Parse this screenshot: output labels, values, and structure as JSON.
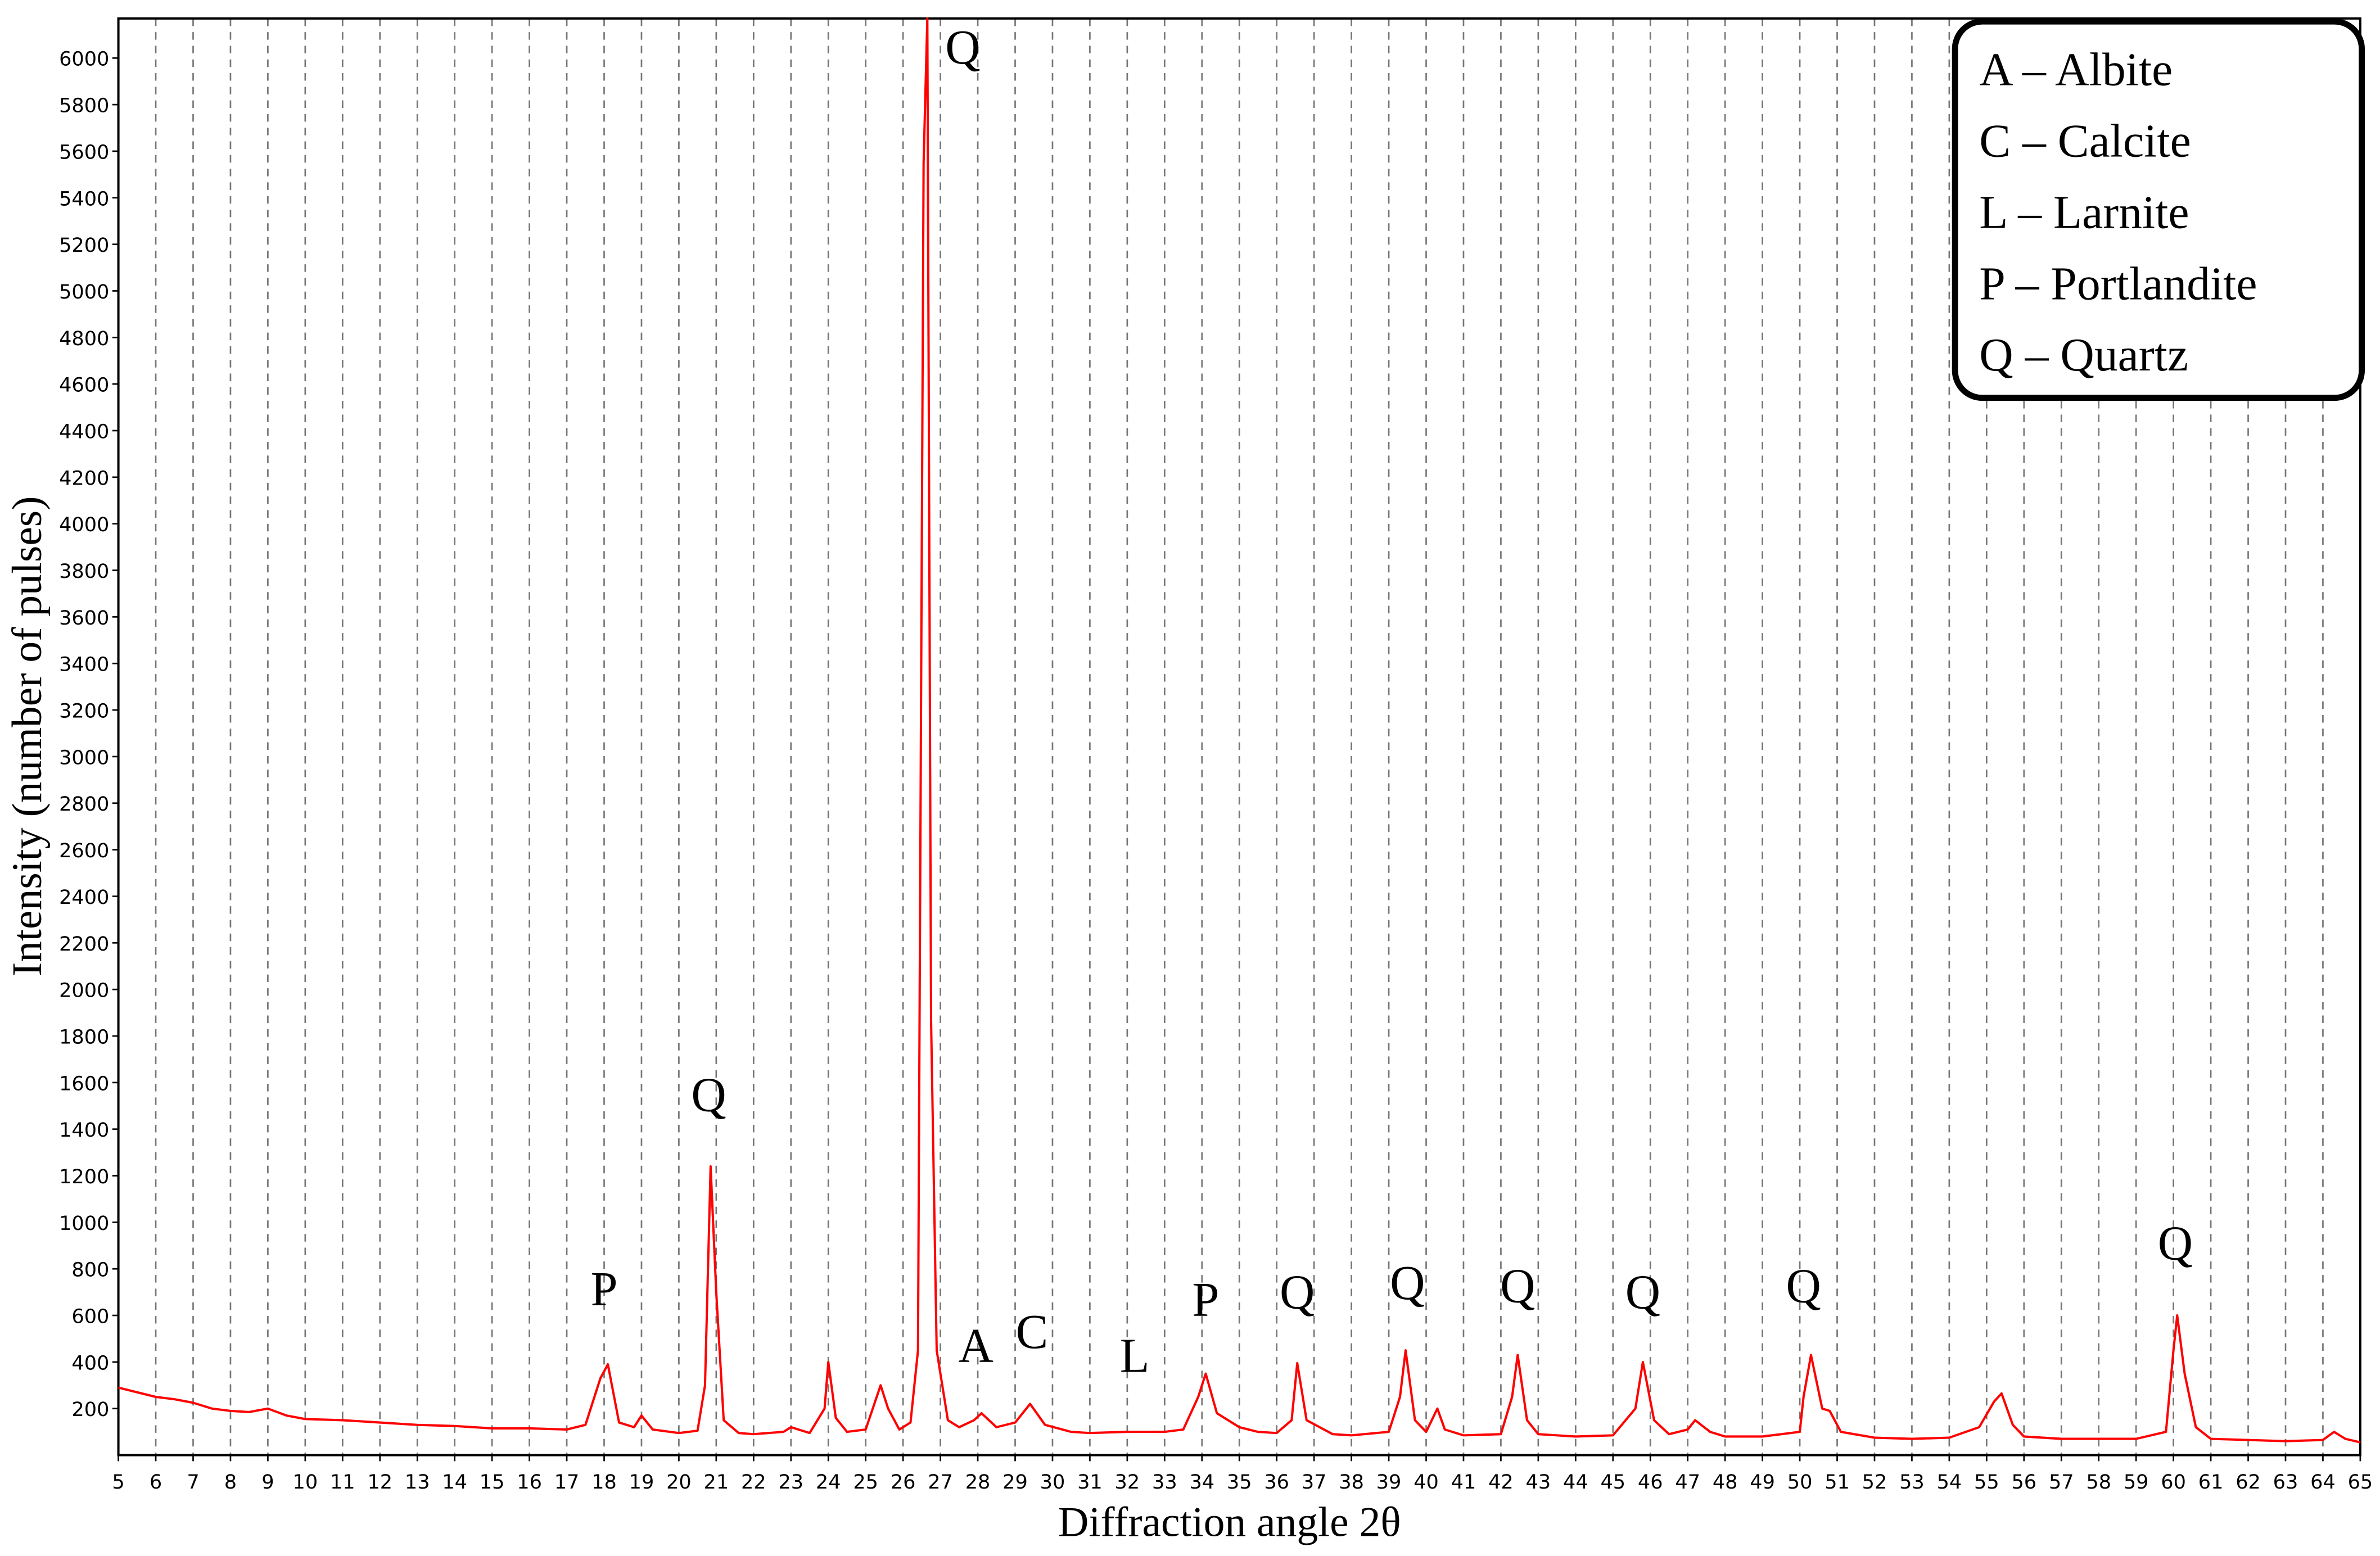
{
  "chart_data": {
    "type": "line",
    "x_label": "Diffraction angle 2θ",
    "y_label": "Intensity (number of pulses)",
    "xlim": [
      5,
      65
    ],
    "ylim": [
      0,
      6170
    ],
    "xticks": [
      5,
      6,
      7,
      8,
      9,
      10,
      11,
      12,
      13,
      14,
      15,
      16,
      17,
      18,
      19,
      20,
      21,
      22,
      23,
      24,
      25,
      26,
      27,
      28,
      29,
      30,
      31,
      32,
      33,
      34,
      35,
      36,
      37,
      38,
      39,
      40,
      41,
      42,
      43,
      44,
      45,
      46,
      47,
      48,
      49,
      50,
      51,
      52,
      53,
      54,
      55,
      56,
      57,
      58,
      59,
      60,
      61,
      62,
      63,
      64,
      65
    ],
    "yticks": [
      200,
      400,
      600,
      800,
      1000,
      1200,
      1400,
      1600,
      1800,
      2000,
      2200,
      2400,
      2600,
      2800,
      3000,
      3200,
      3400,
      3600,
      3800,
      4000,
      4200,
      4400,
      4600,
      4800,
      5000,
      5200,
      5400,
      5600,
      5800,
      6000
    ],
    "grid": "x",
    "x": [
      5,
      5.5,
      6,
      6.5,
      7,
      7.5,
      8,
      8.5,
      9,
      9.5,
      10,
      11,
      12,
      13,
      14,
      15,
      16,
      17,
      17.5,
      17.9,
      18.1,
      18.4,
      18.8,
      19,
      19.3,
      20,
      20.5,
      20.7,
      20.85,
      21,
      21.2,
      21.6,
      22,
      22.8,
      23,
      23.5,
      23.9,
      24,
      24.2,
      24.5,
      25,
      25.4,
      25.6,
      25.9,
      26.2,
      26.4,
      26.55,
      26.65,
      26.75,
      26.9,
      27.2,
      27.5,
      27.9,
      28.1,
      28.5,
      29,
      29.4,
      29.8,
      30.5,
      31,
      32,
      33,
      33.5,
      33.9,
      34.1,
      34.4,
      35,
      35.5,
      36,
      36.4,
      36.55,
      36.8,
      37.5,
      38,
      39,
      39.3,
      39.45,
      39.7,
      40,
      40.3,
      40.5,
      41,
      42,
      42.3,
      42.45,
      42.7,
      43,
      44,
      45,
      45.6,
      45.8,
      46.1,
      46.5,
      47,
      47.2,
      47.6,
      48,
      49,
      50,
      50.1,
      50.3,
      50.6,
      50.8,
      51.1,
      52,
      53,
      54,
      54.8,
      55.2,
      55.4,
      55.7,
      56,
      57,
      58,
      59,
      59.8,
      60,
      60.1,
      60.3,
      60.6,
      61,
      62,
      63,
      64,
      64.3,
      64.6,
      65
    ],
    "series": [
      {
        "color": "#ff0000",
        "values": [
          290,
          270,
          250,
          240,
          225,
          200,
          190,
          185,
          200,
          170,
          155,
          150,
          140,
          130,
          125,
          115,
          115,
          110,
          130,
          330,
          390,
          140,
          120,
          170,
          110,
          95,
          105,
          300,
          1240,
          700,
          150,
          95,
          90,
          100,
          120,
          95,
          200,
          400,
          160,
          100,
          110,
          300,
          200,
          110,
          140,
          450,
          5550,
          6170,
          1870,
          450,
          150,
          120,
          150,
          180,
          120,
          140,
          220,
          130,
          100,
          95,
          100,
          100,
          110,
          250,
          350,
          180,
          120,
          100,
          95,
          150,
          395,
          150,
          90,
          85,
          100,
          250,
          450,
          150,
          100,
          200,
          110,
          85,
          90,
          250,
          430,
          150,
          90,
          80,
          85,
          200,
          400,
          150,
          90,
          110,
          150,
          100,
          80,
          80,
          100,
          250,
          430,
          200,
          190,
          100,
          75,
          70,
          75,
          120,
          230,
          265,
          130,
          80,
          70,
          70,
          70,
          100,
          450,
          600,
          350,
          120,
          70,
          65,
          60,
          65,
          100,
          70,
          55
        ]
      }
    ],
    "annotations": [
      {
        "text": "P",
        "x": 18,
        "y": 643
      },
      {
        "text": "Q",
        "x": 20.8,
        "y": 1478
      },
      {
        "text": "Q",
        "x": 27.6,
        "y": 5976
      },
      {
        "text": "A",
        "x": 27.95,
        "y": 400
      },
      {
        "text": "C",
        "x": 29.45,
        "y": 460
      },
      {
        "text": "L",
        "x": 32.2,
        "y": 357
      },
      {
        "text": "P",
        "x": 34.1,
        "y": 598
      },
      {
        "text": "Q",
        "x": 36.55,
        "y": 630
      },
      {
        "text": "Q",
        "x": 39.5,
        "y": 670
      },
      {
        "text": "Q",
        "x": 42.45,
        "y": 657
      },
      {
        "text": "Q",
        "x": 45.8,
        "y": 630
      },
      {
        "text": "Q",
        "x": 50.1,
        "y": 657
      },
      {
        "text": "Q",
        "x": 60.05,
        "y": 840
      }
    ],
    "legend_entries": [
      "A – Albite",
      "C – Calcite",
      "L – Larnite",
      "P – Portlandite",
      "Q – Quartz"
    ]
  }
}
